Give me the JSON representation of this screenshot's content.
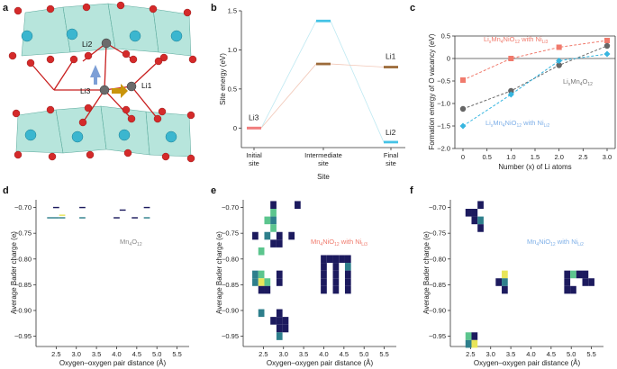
{
  "panel_letters": [
    "a",
    "b",
    "c",
    "d",
    "e",
    "f"
  ],
  "colors": {
    "octahedron": "#7ccfc0",
    "oxygen": "#d42a2a",
    "mn": "#3bb6cf",
    "li": "#6b6b6b",
    "bond": "#c81e1e",
    "arrow_blue": "#7d9fd6",
    "arrow_gold": "#c9940a",
    "seg_li3": "#f07c7c",
    "seg_li2": "#45c3e6",
    "seg_li1": "#9c6b3a",
    "line_ni": "#f07a6c",
    "line_mn4": "#666666",
    "line_ni12": "#37b6e0",
    "heat_dark": "#1c1a5e",
    "heat_mid": "#2e7f8c",
    "heat_light": "#5cc58e",
    "heat_yellow": "#e8e55a"
  },
  "structure": {
    "labels": [
      "Li2",
      "Li3",
      "Li1"
    ]
  },
  "chart_data": [
    {
      "panel": "b",
      "type": "line",
      "xlabel": "Site",
      "ylabel": "Site energy (eV)",
      "ylim": [
        -0.25,
        1.5
      ],
      "yticks": [
        0,
        0.5,
        1.0,
        1.5
      ],
      "yticklabels": [
        "0",
        "0.5",
        "1.0",
        "1.5"
      ],
      "categories": [
        "Initial site",
        "Intermediate site",
        "Final site"
      ],
      "category_lines": [
        [
          "Initial",
          "site"
        ],
        [
          "Intermediate",
          "site"
        ],
        [
          "Final",
          "site"
        ]
      ],
      "series": [
        {
          "name": "Li2",
          "values": [
            0,
            1.37,
            -0.18
          ]
        },
        {
          "name": "Li1",
          "values": [
            0,
            0.82,
            0.78
          ]
        }
      ],
      "point_labels": [
        {
          "text": "Li3",
          "x": 0,
          "y": 0
        },
        {
          "text": "Li1",
          "x": 2,
          "y": 0.78
        },
        {
          "text": "Li2",
          "x": 2,
          "y": -0.18
        }
      ],
      "grid": false
    },
    {
      "panel": "c",
      "type": "line",
      "xlabel": "Number (x) of Li atoms",
      "ylabel": "Formation energy of O vacancy (eV)",
      "xlim": [
        0,
        3
      ],
      "ylim": [
        -2.0,
        0.5
      ],
      "xticks": [
        0,
        0.5,
        1.0,
        1.5,
        2.0,
        2.5,
        3.0
      ],
      "xticklabels": [
        "0",
        "0.5",
        "1.0",
        "1.5",
        "2.0",
        "2.5",
        "3.0"
      ],
      "yticks": [
        -2.0,
        -1.5,
        -1.0,
        -0.5,
        0,
        0.5
      ],
      "yticklabels": [
        "−2.0",
        "−1.5",
        "−1.0",
        "−0.5",
        "0",
        "0.5"
      ],
      "series": [
        {
          "name": "LixMn4NiO12 with NiLi3",
          "x": [
            0,
            1,
            2,
            3
          ],
          "values": [
            -0.48,
            0.0,
            0.25,
            0.4
          ]
        },
        {
          "name": "LixMn4O12",
          "x": [
            0,
            1,
            2,
            3
          ],
          "values": [
            -1.12,
            -0.72,
            -0.15,
            0.28
          ]
        },
        {
          "name": "LixMn4NiO12 with NiLi2",
          "x": [
            0,
            1,
            2,
            3
          ],
          "values": [
            -1.5,
            -0.8,
            -0.05,
            0.1
          ]
        }
      ],
      "annotations": [
        {
          "main": "Li",
          "s1": "x",
          "mid": "Mn",
          "s2": "4",
          "mid2": "NiO",
          "s3": "12",
          "tail": " with Ni",
          "s4": "Li3"
        },
        {
          "main": "Li",
          "s1": "x",
          "mid": "Mn",
          "s2": "4",
          "mid2": "O",
          "s3": "12",
          "tail": "",
          "s4": ""
        },
        {
          "main": "Li",
          "s1": "x",
          "mid": "Mn",
          "s2": "4",
          "mid2": "NiO",
          "s3": "12",
          "tail": " with Ni",
          "s4": "Li2"
        }
      ],
      "zero_line": true,
      "grid": false
    },
    {
      "panel": "d",
      "type": "heatmap",
      "xlabel": "Oxygen–oxygen pair distance (Å)",
      "ylabel": "Average Bader charge (e)",
      "xlim": [
        2.0,
        5.8
      ],
      "ylim": [
        -0.97,
        -0.685
      ],
      "xticks": [
        2.5,
        3.0,
        3.5,
        4.0,
        4.5,
        5.0,
        5.5
      ],
      "xticklabels": [
        "2.5",
        "3.0",
        "3.5",
        "4.0",
        "4.5",
        "5.0",
        "5.5"
      ],
      "yticks": [
        -0.7,
        -0.75,
        -0.8,
        -0.85,
        -0.9,
        -0.95
      ],
      "yticklabels": [
        "−0.70",
        "−0.75",
        "−0.80",
        "−0.85",
        "−0.90",
        "−0.95"
      ],
      "annotation": {
        "main": "Mn",
        "s1": "4",
        "mid": "O",
        "s2": "12"
      },
      "bin_w": 0.15,
      "bin_h": 0.0025,
      "cells": [
        {
          "x": 2.5,
          "y": -0.7,
          "level": 0
        },
        {
          "x": 2.5,
          "y": -0.72,
          "level": 1
        },
        {
          "x": 2.35,
          "y": -0.72,
          "level": 1
        },
        {
          "x": 2.65,
          "y": -0.715,
          "level": 3
        },
        {
          "x": 2.65,
          "y": -0.72,
          "level": 1
        },
        {
          "x": 3.15,
          "y": -0.7,
          "level": 0
        },
        {
          "x": 3.15,
          "y": -0.72,
          "level": 1
        },
        {
          "x": 4.0,
          "y": -0.72,
          "level": 0
        },
        {
          "x": 4.15,
          "y": -0.705,
          "level": 0
        },
        {
          "x": 4.45,
          "y": -0.72,
          "level": 0
        },
        {
          "x": 4.75,
          "y": -0.7,
          "level": 0
        },
        {
          "x": 4.75,
          "y": -0.72,
          "level": 1
        }
      ],
      "grid": false
    },
    {
      "panel": "e",
      "type": "heatmap",
      "xlabel": "Oxygen–oxygen pair distance (Å)",
      "ylabel": "Average Bader charge (e)",
      "xlim": [
        2.0,
        5.8
      ],
      "ylim": [
        -0.97,
        -0.685
      ],
      "xticks": [
        2.5,
        3.0,
        3.5,
        4.0,
        4.5,
        5.0,
        5.5
      ],
      "xticklabels": [
        "2.5",
        "3.0",
        "3.5",
        "4.0",
        "4.5",
        "5.0",
        "5.5"
      ],
      "yticks": [
        -0.7,
        -0.75,
        -0.8,
        -0.85,
        -0.9,
        -0.95
      ],
      "yticklabels": [
        "−0.70",
        "−0.75",
        "−0.80",
        "−0.85",
        "−0.90",
        "−0.95"
      ],
      "annotation": {
        "main": "Mn",
        "s1": "4",
        "mid": "NiO",
        "s2": "12",
        "tail": " with Ni",
        "s3": "Li3"
      },
      "bin_w": 0.15,
      "bin_h": 0.015,
      "cells": [
        {
          "x": 2.75,
          "y": -0.695,
          "level": 0
        },
        {
          "x": 3.35,
          "y": -0.695,
          "level": 0
        },
        {
          "x": 2.75,
          "y": -0.71,
          "level": 2
        },
        {
          "x": 2.6,
          "y": -0.725,
          "level": 2
        },
        {
          "x": 2.75,
          "y": -0.725,
          "level": 1
        },
        {
          "x": 2.75,
          "y": -0.74,
          "level": 2
        },
        {
          "x": 2.3,
          "y": -0.755,
          "level": 0
        },
        {
          "x": 2.6,
          "y": -0.755,
          "level": 1
        },
        {
          "x": 2.9,
          "y": -0.755,
          "level": 0
        },
        {
          "x": 3.2,
          "y": -0.755,
          "level": 0
        },
        {
          "x": 2.75,
          "y": -0.77,
          "level": 0
        },
        {
          "x": 2.9,
          "y": -0.77,
          "level": 0
        },
        {
          "x": 2.45,
          "y": -0.785,
          "level": 2
        },
        {
          "x": 2.3,
          "y": -0.83,
          "level": 1
        },
        {
          "x": 2.45,
          "y": -0.83,
          "level": 2
        },
        {
          "x": 2.9,
          "y": -0.83,
          "level": 0
        },
        {
          "x": 2.3,
          "y": -0.845,
          "level": 1
        },
        {
          "x": 2.45,
          "y": -0.845,
          "level": 3
        },
        {
          "x": 2.6,
          "y": -0.845,
          "level": 2
        },
        {
          "x": 2.9,
          "y": -0.845,
          "level": 0
        },
        {
          "x": 2.45,
          "y": -0.86,
          "level": 0
        },
        {
          "x": 2.6,
          "y": -0.86,
          "level": 0
        },
        {
          "x": 4.0,
          "y": -0.8,
          "level": 0
        },
        {
          "x": 4.15,
          "y": -0.8,
          "level": 0
        },
        {
          "x": 4.3,
          "y": -0.8,
          "level": 0
        },
        {
          "x": 4.45,
          "y": -0.8,
          "level": 0
        },
        {
          "x": 4.6,
          "y": -0.8,
          "level": 0
        },
        {
          "x": 4.0,
          "y": -0.815,
          "level": 0
        },
        {
          "x": 4.3,
          "y": -0.815,
          "level": 0
        },
        {
          "x": 4.6,
          "y": -0.815,
          "level": 1
        },
        {
          "x": 4.0,
          "y": -0.83,
          "level": 0
        },
        {
          "x": 4.3,
          "y": -0.83,
          "level": 0
        },
        {
          "x": 4.6,
          "y": -0.83,
          "level": 0
        },
        {
          "x": 4.0,
          "y": -0.845,
          "level": 0
        },
        {
          "x": 4.3,
          "y": -0.845,
          "level": 0
        },
        {
          "x": 4.6,
          "y": -0.845,
          "level": 0
        },
        {
          "x": 4.0,
          "y": -0.86,
          "level": 0
        },
        {
          "x": 4.3,
          "y": -0.86,
          "level": 0
        },
        {
          "x": 4.6,
          "y": -0.86,
          "level": 0
        },
        {
          "x": 2.45,
          "y": -0.905,
          "level": 1
        },
        {
          "x": 2.9,
          "y": -0.905,
          "level": 0
        },
        {
          "x": 2.75,
          "y": -0.92,
          "level": 0
        },
        {
          "x": 2.9,
          "y": -0.92,
          "level": 0
        },
        {
          "x": 3.05,
          "y": -0.92,
          "level": 0
        },
        {
          "x": 2.9,
          "y": -0.935,
          "level": 0
        },
        {
          "x": 3.05,
          "y": -0.935,
          "level": 0
        },
        {
          "x": 2.9,
          "y": -0.95,
          "level": 1
        }
      ],
      "grid": false
    },
    {
      "panel": "f",
      "type": "heatmap",
      "xlabel": "Oxygen–oxygen pair distance (Å)",
      "ylabel": "Average Bader charge (e)",
      "xlim": [
        2.0,
        5.8
      ],
      "ylim": [
        -0.97,
        -0.685
      ],
      "xticks": [
        2.5,
        3.0,
        3.5,
        4.0,
        4.5,
        5.0,
        5.5
      ],
      "xticklabels": [
        "2.5",
        "3.0",
        "3.5",
        "4.0",
        "4.5",
        "5.0",
        "5.5"
      ],
      "yticks": [
        -0.7,
        -0.75,
        -0.8,
        -0.85,
        -0.9,
        -0.95
      ],
      "yticklabels": [
        "−0.70",
        "−0.75",
        "−0.80",
        "−0.85",
        "−0.90",
        "−0.95"
      ],
      "annotation": {
        "main": "Mn",
        "s1": "4",
        "mid": "NiO",
        "s2": "12",
        "tail": " with Ni",
        "s3": "Li2"
      },
      "bin_w": 0.15,
      "bin_h": 0.015,
      "cells": [
        {
          "x": 2.75,
          "y": -0.695,
          "level": 0
        },
        {
          "x": 2.45,
          "y": -0.71,
          "level": 0
        },
        {
          "x": 2.6,
          "y": -0.71,
          "level": 0
        },
        {
          "x": 2.6,
          "y": -0.725,
          "level": 0
        },
        {
          "x": 2.75,
          "y": -0.725,
          "level": 1
        },
        {
          "x": 2.75,
          "y": -0.74,
          "level": 0
        },
        {
          "x": 3.35,
          "y": -0.83,
          "level": 3
        },
        {
          "x": 3.2,
          "y": -0.845,
          "level": 0
        },
        {
          "x": 3.35,
          "y": -0.845,
          "level": 1
        },
        {
          "x": 3.35,
          "y": -0.86,
          "level": 0
        },
        {
          "x": 4.9,
          "y": -0.83,
          "level": 0
        },
        {
          "x": 5.05,
          "y": -0.83,
          "level": 2
        },
        {
          "x": 5.2,
          "y": -0.83,
          "level": 0
        },
        {
          "x": 5.35,
          "y": -0.83,
          "level": 0
        },
        {
          "x": 4.9,
          "y": -0.845,
          "level": 0
        },
        {
          "x": 5.35,
          "y": -0.845,
          "level": 0
        },
        {
          "x": 5.5,
          "y": -0.845,
          "level": 0
        },
        {
          "x": 4.9,
          "y": -0.86,
          "level": 0
        },
        {
          "x": 5.05,
          "y": -0.86,
          "level": 0
        },
        {
          "x": 2.45,
          "y": -0.95,
          "level": 2
        },
        {
          "x": 2.6,
          "y": -0.95,
          "level": 0
        },
        {
          "x": 2.45,
          "y": -0.965,
          "level": 1
        },
        {
          "x": 2.6,
          "y": -0.965,
          "level": 3
        }
      ],
      "grid": false
    }
  ]
}
